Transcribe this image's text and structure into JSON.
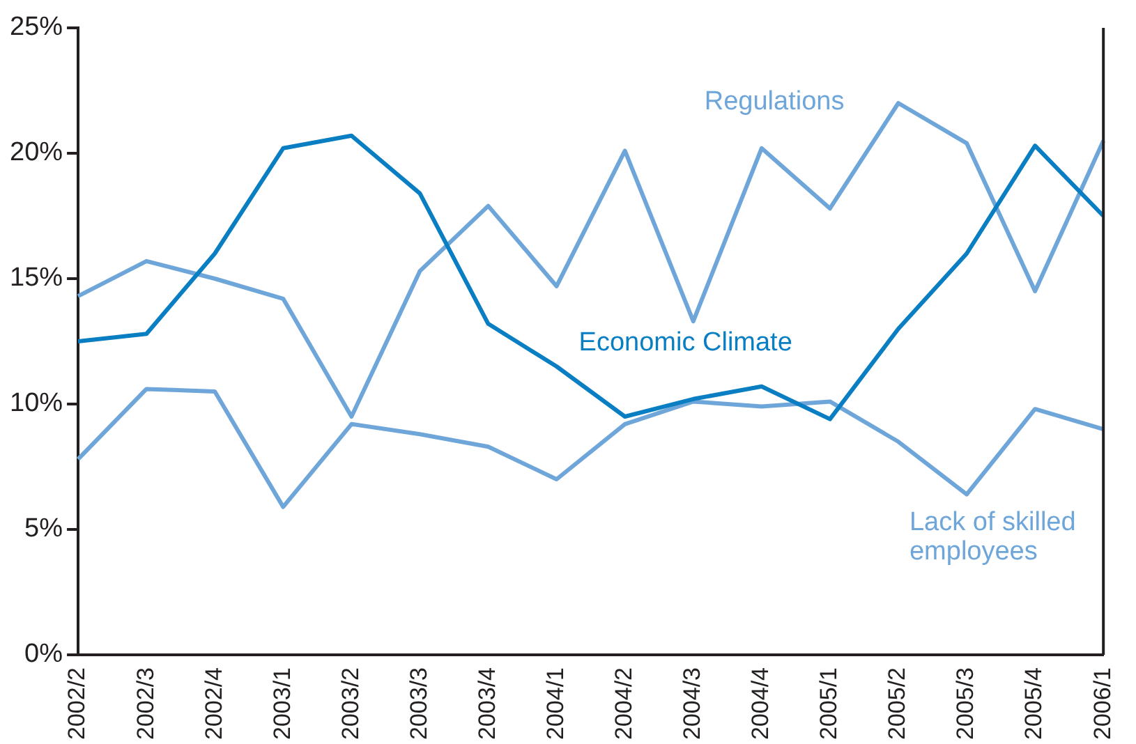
{
  "chart_data": {
    "type": "line",
    "categories": [
      "2002/2",
      "2002/3",
      "2002/4",
      "2003/1",
      "2003/2",
      "2003/3",
      "2003/4",
      "2004/1",
      "2004/2",
      "2004/3",
      "2004/4",
      "2005/1",
      "2005/2",
      "2005/3",
      "2005/4",
      "2006/1"
    ],
    "series": [
      {
        "name": "Economic Climate",
        "color": "#0a7ec2",
        "values": [
          12.5,
          12.8,
          16.0,
          20.2,
          20.7,
          18.4,
          13.2,
          11.5,
          9.5,
          10.2,
          10.7,
          9.4,
          13.0,
          16.0,
          20.3,
          17.5
        ]
      },
      {
        "name": "Regulations",
        "color": "#6fa6da",
        "values": [
          14.3,
          15.7,
          15.0,
          14.2,
          9.5,
          15.3,
          17.9,
          14.7,
          20.1,
          13.3,
          20.2,
          17.8,
          22.0,
          20.4,
          14.5,
          20.5
        ]
      },
      {
        "name": "Lack of skilled employees",
        "color": "#6fa6da",
        "values": [
          7.8,
          10.6,
          10.5,
          5.9,
          9.2,
          8.8,
          8.3,
          7.0,
          9.2,
          10.1,
          9.9,
          10.1,
          8.5,
          6.4,
          9.8,
          9.0
        ]
      }
    ],
    "ylim": [
      0,
      25
    ],
    "yticks": [
      {
        "value": 0,
        "label": "0%"
      },
      {
        "value": 5,
        "label": "5%"
      },
      {
        "value": 10,
        "label": "10%"
      },
      {
        "value": 15,
        "label": "15%"
      },
      {
        "value": 20,
        "label": "20%"
      },
      {
        "value": 25,
        "label": "25%"
      }
    ],
    "grid": false,
    "legend": false,
    "marker": "none",
    "line_style": "solid"
  }
}
